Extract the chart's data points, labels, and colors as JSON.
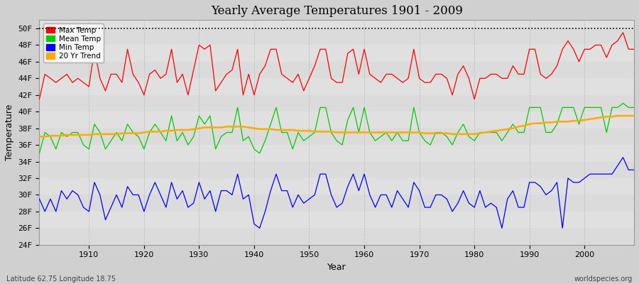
{
  "title": "Yearly Average Temperatures 1901 - 2009",
  "xlabel": "Year",
  "ylabel": "Temperature",
  "xlim": [
    1901,
    2009
  ],
  "ylim": [
    24,
    51
  ],
  "yticks": [
    24,
    26,
    28,
    30,
    32,
    34,
    36,
    38,
    40,
    42,
    44,
    46,
    48,
    50
  ],
  "xticks": [
    1910,
    1920,
    1930,
    1940,
    1950,
    1960,
    1970,
    1980,
    1990,
    2000
  ],
  "dotted_line_y": 50,
  "fig_bg_color": "#d0d0d0",
  "plot_bg_color": "#e0e0e0",
  "stripe_color": "#d8d8d8",
  "max_temp_color": "#ff0000",
  "mean_temp_color": "#00cc00",
  "min_temp_color": "#0000ff",
  "trend_color": "#ffaa00",
  "subtitle_left": "Latitude 62.75 Longitude 18.75",
  "subtitle_right": "worldspecies.org",
  "legend_labels": [
    "Max Temp",
    "Mean Temp",
    "Min Temp",
    "20 Yr Trend"
  ],
  "years": [
    1901,
    1902,
    1903,
    1904,
    1905,
    1906,
    1907,
    1908,
    1909,
    1910,
    1911,
    1912,
    1913,
    1914,
    1915,
    1916,
    1917,
    1918,
    1919,
    1920,
    1921,
    1922,
    1923,
    1924,
    1925,
    1926,
    1927,
    1928,
    1929,
    1930,
    1931,
    1932,
    1933,
    1934,
    1935,
    1936,
    1937,
    1938,
    1939,
    1940,
    1941,
    1942,
    1943,
    1944,
    1945,
    1946,
    1947,
    1948,
    1949,
    1950,
    1951,
    1952,
    1953,
    1954,
    1955,
    1956,
    1957,
    1958,
    1959,
    1960,
    1961,
    1962,
    1963,
    1964,
    1965,
    1966,
    1967,
    1968,
    1969,
    1970,
    1971,
    1972,
    1973,
    1974,
    1975,
    1976,
    1977,
    1978,
    1979,
    1980,
    1981,
    1982,
    1983,
    1984,
    1985,
    1986,
    1987,
    1988,
    1989,
    1990,
    1991,
    1992,
    1993,
    1994,
    1995,
    1996,
    1997,
    1998,
    1999,
    2000,
    2001,
    2002,
    2003,
    2004,
    2005,
    2006,
    2007,
    2008,
    2009
  ],
  "max_temp": [
    41.5,
    44.5,
    44.0,
    43.5,
    44.0,
    44.5,
    43.5,
    44.0,
    43.5,
    43.0,
    47.5,
    44.0,
    42.5,
    44.5,
    44.5,
    43.5,
    47.5,
    44.5,
    43.5,
    42.0,
    44.5,
    45.0,
    44.0,
    44.5,
    47.5,
    43.5,
    44.5,
    42.0,
    45.0,
    48.0,
    47.5,
    48.0,
    42.5,
    43.5,
    44.5,
    45.0,
    47.5,
    42.0,
    44.5,
    42.0,
    44.5,
    45.5,
    47.5,
    47.5,
    44.5,
    44.0,
    43.5,
    44.5,
    42.5,
    44.0,
    45.5,
    47.5,
    47.5,
    44.0,
    43.5,
    43.5,
    47.0,
    47.5,
    44.5,
    47.5,
    44.5,
    44.0,
    43.5,
    44.5,
    44.5,
    44.0,
    43.5,
    44.0,
    47.5,
    44.0,
    43.5,
    43.5,
    44.5,
    44.5,
    44.0,
    42.0,
    44.5,
    45.5,
    44.0,
    41.5,
    44.0,
    44.0,
    44.5,
    44.5,
    44.0,
    44.0,
    45.5,
    44.5,
    44.5,
    47.5,
    47.5,
    44.5,
    44.0,
    44.5,
    45.5,
    47.5,
    48.5,
    47.5,
    46.0,
    47.5,
    47.5,
    48.0,
    48.0,
    46.5,
    48.0,
    48.5,
    49.5,
    47.5,
    47.5
  ],
  "mean_temp": [
    35.0,
    37.5,
    37.0,
    35.5,
    37.5,
    37.0,
    37.5,
    37.5,
    36.0,
    35.5,
    38.5,
    37.5,
    35.5,
    36.5,
    37.5,
    36.5,
    38.5,
    37.5,
    37.0,
    35.5,
    37.5,
    38.5,
    37.5,
    36.5,
    39.5,
    36.5,
    37.5,
    36.0,
    37.0,
    39.5,
    38.5,
    39.5,
    35.5,
    37.0,
    37.5,
    37.5,
    40.5,
    36.5,
    37.0,
    35.5,
    35.0,
    36.5,
    38.5,
    40.5,
    37.5,
    37.5,
    35.5,
    37.5,
    36.5,
    37.0,
    37.5,
    40.5,
    40.5,
    37.5,
    36.5,
    36.0,
    39.0,
    40.5,
    37.5,
    40.5,
    37.5,
    36.5,
    37.0,
    37.5,
    36.5,
    37.5,
    36.5,
    36.5,
    40.5,
    37.5,
    36.5,
    36.0,
    37.5,
    37.5,
    37.0,
    36.0,
    37.5,
    38.5,
    37.0,
    36.5,
    37.5,
    37.5,
    37.5,
    37.5,
    36.5,
    37.5,
    38.5,
    37.5,
    37.5,
    40.5,
    40.5,
    40.5,
    37.5,
    37.5,
    38.5,
    40.5,
    40.5,
    40.5,
    38.5,
    40.5,
    40.5,
    40.5,
    40.5,
    37.5,
    40.5,
    40.5,
    41.0,
    40.5,
    40.5
  ],
  "min_temp": [
    29.5,
    28.0,
    29.5,
    28.0,
    30.5,
    29.5,
    30.5,
    30.0,
    28.5,
    28.0,
    31.5,
    30.0,
    27.0,
    28.5,
    30.0,
    28.5,
    31.0,
    30.0,
    30.0,
    28.0,
    30.0,
    31.5,
    30.0,
    28.5,
    31.5,
    29.5,
    30.5,
    28.5,
    29.0,
    31.5,
    29.5,
    30.5,
    28.0,
    30.5,
    30.5,
    30.0,
    32.5,
    29.5,
    30.0,
    26.5,
    26.0,
    28.0,
    30.5,
    32.5,
    30.5,
    30.5,
    28.5,
    30.0,
    29.0,
    29.5,
    30.0,
    32.5,
    32.5,
    30.0,
    28.5,
    29.0,
    31.0,
    32.5,
    30.5,
    32.5,
    30.0,
    28.5,
    30.0,
    30.0,
    28.5,
    30.5,
    29.5,
    28.5,
    31.5,
    30.5,
    28.5,
    28.5,
    30.0,
    30.0,
    29.5,
    28.0,
    29.0,
    30.5,
    29.0,
    28.5,
    30.5,
    28.5,
    29.0,
    28.5,
    26.0,
    29.5,
    30.5,
    28.5,
    28.5,
    31.5,
    31.5,
    31.0,
    30.0,
    30.5,
    31.5,
    26.0,
    32.0,
    31.5,
    31.5,
    32.0,
    32.5,
    32.5,
    32.5,
    32.5,
    32.5,
    33.5,
    34.5,
    33.0,
    33.0
  ],
  "trend": [
    37.0,
    37.0,
    37.1,
    37.1,
    37.1,
    37.2,
    37.2,
    37.2,
    37.2,
    37.2,
    37.3,
    37.3,
    37.3,
    37.3,
    37.3,
    37.4,
    37.4,
    37.4,
    37.4,
    37.5,
    37.6,
    37.6,
    37.6,
    37.7,
    37.7,
    37.8,
    37.8,
    37.8,
    37.9,
    38.0,
    38.1,
    38.1,
    38.1,
    38.1,
    38.2,
    38.2,
    38.2,
    38.2,
    38.1,
    38.0,
    37.9,
    37.9,
    37.9,
    37.8,
    37.8,
    37.8,
    37.8,
    37.7,
    37.7,
    37.7,
    37.6,
    37.6,
    37.6,
    37.6,
    37.5,
    37.5,
    37.5,
    37.5,
    37.5,
    37.5,
    37.5,
    37.5,
    37.5,
    37.5,
    37.5,
    37.5,
    37.5,
    37.5,
    37.5,
    37.5,
    37.4,
    37.4,
    37.4,
    37.4,
    37.4,
    37.3,
    37.3,
    37.3,
    37.3,
    37.3,
    37.4,
    37.5,
    37.6,
    37.7,
    37.8,
    37.9,
    38.0,
    38.2,
    38.3,
    38.5,
    38.6,
    38.6,
    38.7,
    38.7,
    38.8,
    38.8,
    38.8,
    38.9,
    38.9,
    39.0,
    39.1,
    39.2,
    39.3,
    39.4,
    39.4,
    39.5,
    39.5,
    39.5,
    39.5
  ]
}
